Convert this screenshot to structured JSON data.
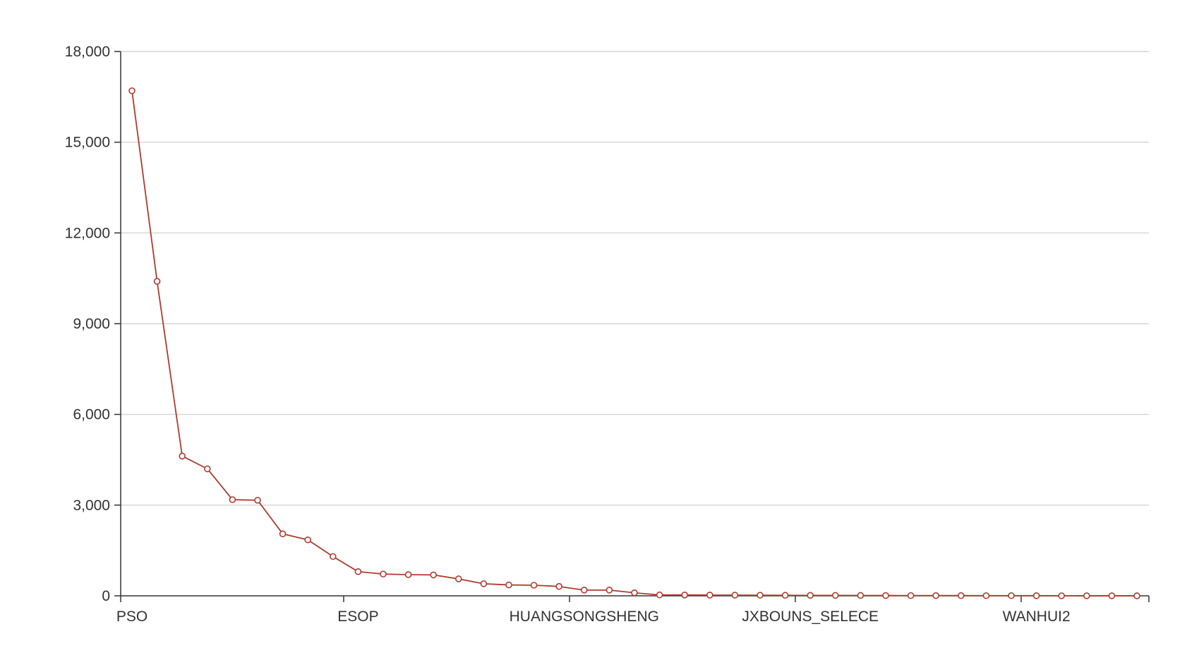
{
  "chart_data": {
    "type": "line",
    "x_tick_labels": [
      "PSO",
      "ESOP",
      "HUANGSONGSHENG",
      "JXBOUNS_SELECE",
      "WANHUI2"
    ],
    "x_tick_label_indices": [
      0,
      9,
      18,
      27,
      36
    ],
    "y_ticks": [
      0,
      3000,
      6000,
      9000,
      12000,
      15000,
      18000
    ],
    "y_tick_labels": [
      "0",
      "3,000",
      "6,000",
      "9,000",
      "12,000",
      "15,000",
      "18,000"
    ],
    "ylim": [
      0,
      18000
    ],
    "grid": true,
    "series": [
      {
        "color": "#b03a2e",
        "values": [
          16700,
          10400,
          4620,
          4200,
          3180,
          3160,
          2050,
          1850,
          1300,
          800,
          720,
          700,
          690,
          560,
          400,
          360,
          350,
          310,
          190,
          190,
          100,
          30,
          28,
          25,
          22,
          20,
          18,
          15,
          14,
          12,
          10,
          9,
          8,
          7,
          6,
          5,
          4,
          3,
          2,
          2,
          1
        ]
      }
    ],
    "title": "",
    "xlabel": "",
    "ylabel": ""
  }
}
